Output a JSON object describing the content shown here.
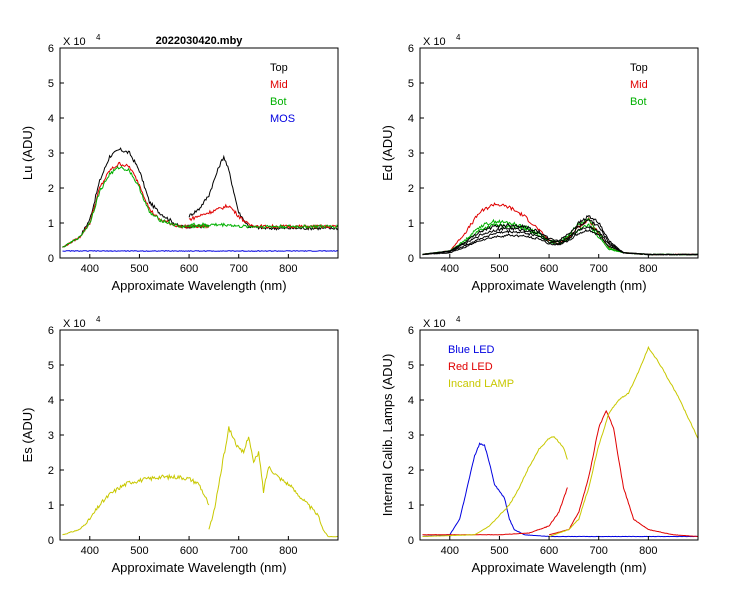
{
  "chart_data": [
    {
      "id": "lu",
      "type": "line",
      "title": "2022030420.mby",
      "xlabel": "Approximate Wavelength (nm)",
      "ylabel": "Lu (ADU)",
      "multiplier_base": "X 10",
      "multiplier_exp": "4",
      "xlim": [
        340,
        900
      ],
      "ylim": [
        0,
        6
      ],
      "xticks": [
        "400",
        "500",
        "600",
        "700",
        "800"
      ],
      "yticks": [
        "0",
        "1",
        "2",
        "3",
        "4",
        "5",
        "6"
      ],
      "legend": [
        {
          "label": "Top",
          "color": "#000000"
        },
        {
          "label": "Mid",
          "color": "#e00000"
        },
        {
          "label": "Bot",
          "color": "#00b000"
        },
        {
          "label": "MOS",
          "color": "#0000e0"
        }
      ],
      "series": [
        {
          "name": "Top",
          "color": "#000000",
          "x": [
            345,
            380,
            400,
            420,
            440,
            460,
            480,
            500,
            520,
            540,
            560,
            580,
            600,
            640
          ],
          "y": [
            0.3,
            0.6,
            1.1,
            2.2,
            2.9,
            3.1,
            3.0,
            2.5,
            1.6,
            1.3,
            1.1,
            0.9,
            0.9,
            0.9
          ]
        },
        {
          "name": "Top",
          "color": "#000000",
          "x": [
            600,
            620,
            640,
            660,
            670,
            680,
            690,
            700,
            720,
            750,
            800,
            900
          ],
          "y": [
            1.2,
            1.4,
            1.8,
            2.6,
            2.9,
            2.5,
            1.9,
            1.3,
            0.9,
            0.85,
            0.85,
            0.85
          ]
        },
        {
          "name": "Mid",
          "color": "#e00000",
          "x": [
            345,
            380,
            400,
            420,
            440,
            460,
            480,
            500,
            520,
            540,
            560,
            580,
            600,
            640
          ],
          "y": [
            0.3,
            0.6,
            1.0,
            2.0,
            2.5,
            2.7,
            2.6,
            2.1,
            1.4,
            1.1,
            1.0,
            0.9,
            0.9,
            0.9
          ]
        },
        {
          "name": "Mid",
          "color": "#e00000",
          "x": [
            600,
            620,
            640,
            660,
            680,
            700,
            720,
            750,
            800,
            900
          ],
          "y": [
            1.1,
            1.2,
            1.3,
            1.4,
            1.5,
            1.2,
            0.95,
            0.9,
            0.9,
            0.9
          ]
        },
        {
          "name": "Bot",
          "color": "#00b000",
          "x": [
            345,
            380,
            400,
            420,
            440,
            460,
            480,
            500,
            520,
            540,
            560,
            580,
            600,
            640
          ],
          "y": [
            0.3,
            0.6,
            1.0,
            1.9,
            2.4,
            2.6,
            2.5,
            2.0,
            1.3,
            1.1,
            1.0,
            0.9,
            0.9,
            0.9
          ]
        },
        {
          "name": "Bot",
          "color": "#00b000",
          "x": [
            600,
            620,
            640,
            660,
            680,
            700,
            720,
            750,
            800,
            900
          ],
          "y": [
            0.95,
            0.95,
            0.95,
            0.95,
            0.95,
            0.9,
            0.9,
            0.9,
            0.9,
            0.9
          ]
        },
        {
          "name": "MOS",
          "color": "#0000e0",
          "x": [
            345,
            900
          ],
          "y": [
            0.2,
            0.2
          ]
        }
      ]
    },
    {
      "id": "ed",
      "type": "line",
      "title": "",
      "xlabel": "Approximate Wavelength (nm)",
      "ylabel": "Ed  (ADU)",
      "multiplier_base": "X 10",
      "multiplier_exp": "4",
      "xlim": [
        340,
        900
      ],
      "ylim": [
        0,
        6
      ],
      "xticks": [
        "400",
        "500",
        "600",
        "700",
        "800"
      ],
      "yticks": [
        "0",
        "1",
        "2",
        "3",
        "4",
        "5",
        "6"
      ],
      "legend": [
        {
          "label": "Top",
          "color": "#000000"
        },
        {
          "label": "Mid",
          "color": "#e00000"
        },
        {
          "label": "Bot",
          "color": "#00b000"
        }
      ],
      "series": [
        {
          "name": "Mid",
          "color": "#e00000",
          "x": [
            345,
            400,
            430,
            460,
            490,
            520,
            550,
            580,
            600,
            620,
            640,
            660,
            680,
            700,
            720,
            750,
            800,
            900
          ],
          "y": [
            0.1,
            0.2,
            0.7,
            1.3,
            1.55,
            1.45,
            1.2,
            0.8,
            0.5,
            0.4,
            0.6,
            0.9,
            1.1,
            0.7,
            0.3,
            0.15,
            0.1,
            0.1
          ]
        },
        {
          "name": "Bot",
          "color": "#00b000",
          "x": [
            345,
            400,
            430,
            460,
            490,
            520,
            550,
            580,
            600,
            620,
            640,
            660,
            680,
            700,
            720,
            750,
            800,
            900
          ],
          "y": [
            0.1,
            0.2,
            0.5,
            0.9,
            1.05,
            1.0,
            0.9,
            0.7,
            0.5,
            0.45,
            0.65,
            1.0,
            1.1,
            0.7,
            0.3,
            0.15,
            0.1,
            0.1
          ]
        },
        {
          "name": "Bot",
          "color": "#00b000",
          "x": [
            345,
            400,
            430,
            460,
            490,
            520,
            550,
            580,
            600,
            620,
            640,
            660,
            680,
            700,
            720,
            750,
            800,
            900
          ],
          "y": [
            0.1,
            0.2,
            0.45,
            0.8,
            0.95,
            0.9,
            0.85,
            0.65,
            0.45,
            0.4,
            0.55,
            0.8,
            0.95,
            0.6,
            0.25,
            0.15,
            0.1,
            0.1
          ]
        },
        {
          "name": "Top",
          "color": "#000000",
          "x": [
            345,
            400,
            430,
            460,
            490,
            520,
            550,
            580,
            600,
            620,
            640,
            660,
            680,
            700,
            720,
            750,
            800,
            900
          ],
          "y": [
            0.1,
            0.2,
            0.45,
            0.75,
            0.9,
            0.95,
            0.9,
            0.75,
            0.55,
            0.5,
            0.7,
            1.0,
            1.2,
            1.0,
            0.5,
            0.15,
            0.1,
            0.1
          ]
        },
        {
          "name": "Top",
          "color": "#000000",
          "x": [
            345,
            400,
            430,
            460,
            490,
            520,
            550,
            580,
            600,
            620,
            640,
            660,
            680,
            700,
            720,
            750,
            800,
            900
          ],
          "y": [
            0.1,
            0.2,
            0.4,
            0.65,
            0.8,
            0.85,
            0.8,
            0.7,
            0.5,
            0.45,
            0.6,
            0.9,
            1.1,
            0.9,
            0.45,
            0.15,
            0.1,
            0.1
          ]
        },
        {
          "name": "Top",
          "color": "#000000",
          "x": [
            345,
            400,
            430,
            460,
            490,
            520,
            550,
            580,
            600,
            620,
            640,
            660,
            680,
            700,
            720,
            750,
            800,
            900
          ],
          "y": [
            0.1,
            0.18,
            0.35,
            0.55,
            0.7,
            0.75,
            0.72,
            0.62,
            0.45,
            0.4,
            0.55,
            0.8,
            0.9,
            0.75,
            0.4,
            0.15,
            0.1,
            0.1
          ]
        },
        {
          "name": "Top",
          "color": "#000000",
          "x": [
            345,
            400,
            430,
            460,
            490,
            520,
            550,
            580,
            600,
            620,
            640,
            660,
            680,
            700,
            720,
            750,
            800,
            900
          ],
          "y": [
            0.1,
            0.15,
            0.3,
            0.5,
            0.6,
            0.65,
            0.62,
            0.55,
            0.4,
            0.38,
            0.5,
            0.7,
            0.8,
            0.65,
            0.35,
            0.15,
            0.1,
            0.1
          ]
        }
      ]
    },
    {
      "id": "es",
      "type": "line",
      "title": "",
      "xlabel": "Approximate Wavelength (nm)",
      "ylabel": "Es  (ADU)",
      "multiplier_base": "X 10",
      "multiplier_exp": "4",
      "xlim": [
        340,
        900
      ],
      "ylim": [
        0,
        6
      ],
      "xticks": [
        "400",
        "500",
        "600",
        "700",
        "800"
      ],
      "yticks": [
        "0",
        "1",
        "2",
        "3",
        "4",
        "5",
        "6"
      ],
      "legend": [],
      "series": [
        {
          "name": "Es",
          "color": "#c8c800",
          "x": [
            345,
            380,
            400,
            420,
            440,
            460,
            480,
            500,
            520,
            540,
            560,
            580,
            600,
            620,
            640
          ],
          "y": [
            0.15,
            0.3,
            0.6,
            1.0,
            1.3,
            1.5,
            1.65,
            1.7,
            1.75,
            1.8,
            1.8,
            1.8,
            1.75,
            1.6,
            1.0
          ]
        },
        {
          "name": "Es",
          "color": "#c8c800",
          "x": [
            640,
            650,
            660,
            670,
            680,
            690,
            700,
            710,
            720,
            730,
            740,
            750,
            760,
            780,
            800,
            820,
            840,
            860,
            870,
            880,
            900
          ],
          "y": [
            0.3,
            0.8,
            1.6,
            2.4,
            3.2,
            2.9,
            2.6,
            2.5,
            3.0,
            2.2,
            2.5,
            1.4,
            2.1,
            1.8,
            1.6,
            1.3,
            1.0,
            0.7,
            0.3,
            0.1,
            0.1
          ]
        }
      ]
    },
    {
      "id": "calib",
      "type": "line",
      "title": "",
      "xlabel": "Approximate Wavelength (nm)",
      "ylabel": "Internal Calib. Lamps  (ADU)",
      "multiplier_base": "X 10",
      "multiplier_exp": "4",
      "xlim": [
        340,
        900
      ],
      "ylim": [
        0,
        6
      ],
      "xticks": [
        "400",
        "500",
        "600",
        "700",
        "800"
      ],
      "yticks": [
        "0",
        "1",
        "2",
        "3",
        "4",
        "5",
        "6"
      ],
      "legend": [
        {
          "label": "Blue LED",
          "color": "#0000e0"
        },
        {
          "label": "Red LED",
          "color": "#e00000"
        },
        {
          "label": "Incand LAMP",
          "color": "#c8c800"
        }
      ],
      "series": [
        {
          "name": "Blue LED",
          "color": "#0000e0",
          "x": [
            345,
            400,
            420,
            440,
            450,
            460,
            470,
            480,
            490,
            500,
            510,
            520,
            530,
            550,
            600,
            700,
            900
          ],
          "y": [
            0.1,
            0.15,
            0.6,
            1.8,
            2.4,
            2.75,
            2.7,
            2.2,
            1.6,
            1.4,
            1.2,
            0.6,
            0.3,
            0.15,
            0.1,
            0.1,
            0.1
          ]
        },
        {
          "name": "Red LED",
          "color": "#e00000",
          "x": [
            345,
            500,
            560,
            600,
            620,
            637
          ],
          "y": [
            0.15,
            0.15,
            0.2,
            0.4,
            0.8,
            1.5
          ]
        },
        {
          "name": "Red LED",
          "color": "#e00000",
          "x": [
            600,
            640,
            660,
            680,
            700,
            715,
            730,
            740,
            750,
            770,
            800,
            850,
            900
          ],
          "y": [
            0.15,
            0.3,
            0.8,
            1.8,
            3.2,
            3.7,
            3.2,
            2.3,
            1.5,
            0.6,
            0.3,
            0.15,
            0.1
          ]
        },
        {
          "name": "Incand LAMP",
          "color": "#c8c800",
          "x": [
            345,
            450,
            480,
            500,
            520,
            540,
            560,
            580,
            600,
            610,
            620,
            630,
            637
          ],
          "y": [
            0.1,
            0.15,
            0.4,
            0.7,
            1.0,
            1.5,
            2.1,
            2.6,
            2.9,
            2.95,
            2.8,
            2.6,
            2.3
          ]
        },
        {
          "name": "Incand LAMP",
          "color": "#c8c800",
          "x": [
            600,
            640,
            660,
            680,
            700,
            720,
            740,
            760,
            780,
            800,
            820,
            840,
            860,
            880,
            900
          ],
          "y": [
            0.1,
            0.3,
            0.6,
            1.5,
            2.7,
            3.6,
            4.0,
            4.2,
            4.8,
            5.5,
            5.1,
            4.6,
            4.1,
            3.5,
            2.9
          ]
        }
      ]
    }
  ]
}
